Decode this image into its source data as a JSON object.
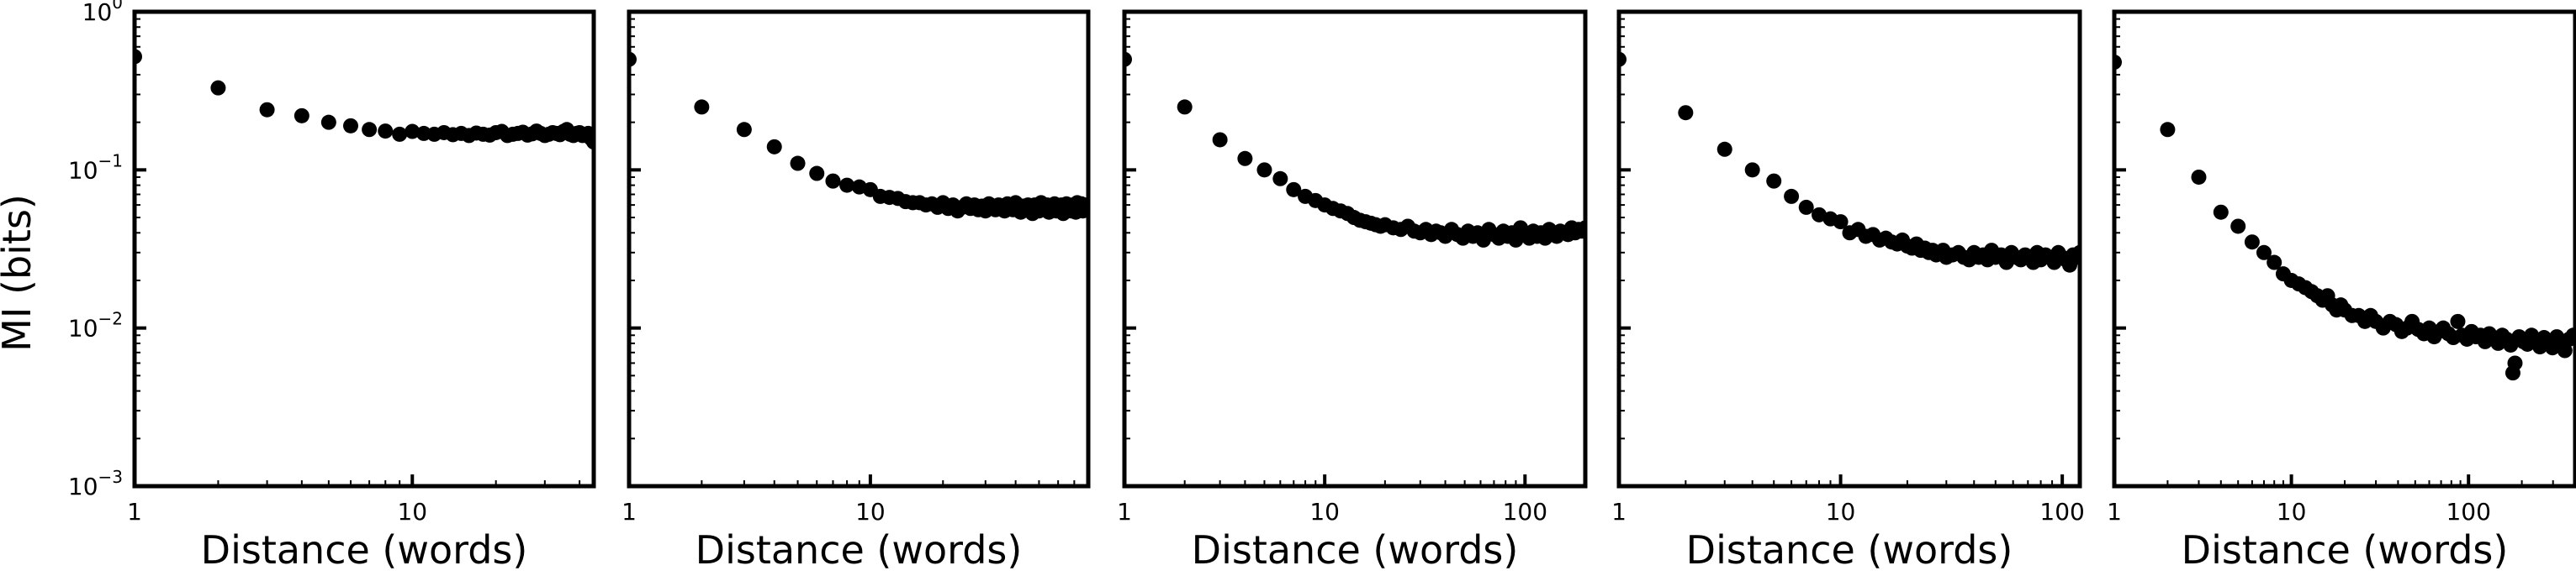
{
  "figure": {
    "ylabel": "MI (bits)",
    "y_ticks": [
      {
        "base": "10",
        "exp": "0",
        "value": 1
      },
      {
        "base": "10",
        "exp": "−1",
        "value": 0.1
      },
      {
        "base": "10",
        "exp": "−2",
        "value": 0.01
      },
      {
        "base": "10",
        "exp": "−3",
        "value": 0.001
      }
    ],
    "marker_color": "#000000"
  },
  "chart_data": [
    {
      "type": "scatter",
      "xscale": "log",
      "yscale": "log",
      "xlabel": "Distance (words)",
      "xlim": [
        1,
        45
      ],
      "ylim": [
        0.001,
        1
      ],
      "xticks": [
        {
          "label": "1",
          "value": 1
        },
        {
          "label": "10",
          "value": 10
        }
      ],
      "x": [
        1,
        2,
        3,
        4,
        5,
        6,
        7,
        8,
        9,
        10,
        11,
        12,
        13,
        14,
        15,
        16,
        17,
        18,
        19,
        20,
        21,
        22,
        23,
        24,
        25,
        26,
        27,
        28,
        29,
        30,
        31,
        32,
        33,
        34,
        35,
        36,
        37,
        38,
        39,
        40,
        41,
        42,
        43,
        44,
        45
      ],
      "y": [
        0.52,
        0.33,
        0.24,
        0.22,
        0.2,
        0.19,
        0.18,
        0.176,
        0.168,
        0.175,
        0.17,
        0.168,
        0.172,
        0.167,
        0.17,
        0.165,
        0.171,
        0.168,
        0.166,
        0.172,
        0.175,
        0.165,
        0.168,
        0.17,
        0.173,
        0.166,
        0.169,
        0.176,
        0.17,
        0.165,
        0.168,
        0.172,
        0.17,
        0.167,
        0.175,
        0.18,
        0.168,
        0.165,
        0.17,
        0.172,
        0.165,
        0.168,
        0.17,
        0.158,
        0.15
      ]
    },
    {
      "type": "scatter",
      "xscale": "log",
      "yscale": "log",
      "xlabel": "Distance (words)",
      "xlim": [
        1,
        80
      ],
      "ylim": [
        0.001,
        1
      ],
      "xticks": [
        {
          "label": "1",
          "value": 1
        },
        {
          "label": "10",
          "value": 10
        }
      ],
      "x": [
        1,
        2,
        3,
        4,
        5,
        6,
        7,
        8,
        9,
        10,
        11,
        12,
        13,
        14,
        15,
        16,
        17,
        18,
        19,
        20,
        21,
        22,
        23,
        24,
        25,
        26,
        27,
        28,
        29,
        30,
        31,
        32,
        33,
        34,
        35,
        36,
        37,
        38,
        39,
        40,
        41,
        42,
        43,
        44,
        45,
        46,
        47,
        48,
        49,
        50,
        51,
        52,
        53,
        54,
        55,
        56,
        57,
        58,
        59,
        60,
        61,
        62,
        63,
        64,
        65,
        66,
        67,
        68,
        69,
        70,
        71,
        72,
        73,
        74,
        75,
        76,
        77,
        78,
        79,
        80
      ],
      "y": [
        0.5,
        0.25,
        0.18,
        0.14,
        0.11,
        0.095,
        0.085,
        0.08,
        0.078,
        0.075,
        0.068,
        0.067,
        0.066,
        0.063,
        0.062,
        0.062,
        0.06,
        0.061,
        0.058,
        0.062,
        0.057,
        0.06,
        0.055,
        0.058,
        0.061,
        0.057,
        0.06,
        0.056,
        0.059,
        0.055,
        0.061,
        0.058,
        0.056,
        0.06,
        0.057,
        0.055,
        0.061,
        0.058,
        0.056,
        0.062,
        0.057,
        0.054,
        0.059,
        0.056,
        0.06,
        0.058,
        0.053,
        0.06,
        0.057,
        0.055,
        0.062,
        0.058,
        0.056,
        0.06,
        0.054,
        0.059,
        0.057,
        0.061,
        0.055,
        0.058,
        0.056,
        0.06,
        0.053,
        0.058,
        0.061,
        0.056,
        0.059,
        0.055,
        0.06,
        0.057,
        0.054,
        0.062,
        0.058,
        0.056,
        0.061,
        0.055,
        0.059,
        0.057,
        0.06,
        0.056
      ]
    },
    {
      "type": "scatter",
      "xscale": "log",
      "yscale": "log",
      "xlabel": "Distance (words)",
      "xlim": [
        1,
        200
      ],
      "ylim": [
        0.001,
        1
      ],
      "xticks": [
        {
          "label": "1",
          "value": 1
        },
        {
          "label": "10",
          "value": 10
        },
        {
          "label": "100",
          "value": 100
        }
      ],
      "x": [
        1,
        2,
        3,
        4,
        5,
        6,
        7,
        8,
        9,
        10,
        11,
        12,
        13,
        14,
        15,
        16,
        17,
        18,
        19,
        20,
        22,
        24,
        26,
        28,
        30,
        32,
        34,
        36,
        38,
        40,
        43,
        46,
        49,
        52,
        55,
        58,
        62,
        66,
        70,
        74,
        78,
        82,
        86,
        90,
        95,
        100,
        105,
        110,
        115,
        120,
        126,
        132,
        138,
        144,
        150,
        157,
        164,
        171,
        178,
        185,
        192,
        200
      ],
      "y": [
        0.5,
        0.25,
        0.155,
        0.118,
        0.1,
        0.088,
        0.075,
        0.068,
        0.064,
        0.06,
        0.057,
        0.055,
        0.053,
        0.05,
        0.048,
        0.047,
        0.046,
        0.045,
        0.044,
        0.045,
        0.043,
        0.042,
        0.044,
        0.041,
        0.04,
        0.042,
        0.039,
        0.041,
        0.04,
        0.038,
        0.042,
        0.039,
        0.037,
        0.041,
        0.038,
        0.04,
        0.036,
        0.042,
        0.039,
        0.037,
        0.041,
        0.038,
        0.04,
        0.036,
        0.043,
        0.039,
        0.037,
        0.041,
        0.038,
        0.04,
        0.037,
        0.042,
        0.039,
        0.038,
        0.041,
        0.04,
        0.039,
        0.043,
        0.04,
        0.042,
        0.041,
        0.043
      ]
    },
    {
      "type": "scatter",
      "xscale": "log",
      "yscale": "log",
      "xlabel": "Distance (words)",
      "xlim": [
        1,
        120
      ],
      "ylim": [
        0.001,
        1
      ],
      "xticks": [
        {
          "label": "1",
          "value": 1
        },
        {
          "label": "10",
          "value": 10
        },
        {
          "label": "100",
          "value": 100
        }
      ],
      "x": [
        1,
        2,
        3,
        4,
        5,
        6,
        7,
        8,
        9,
        10,
        11,
        12,
        13,
        14,
        15,
        16,
        17,
        18,
        19,
        20,
        21,
        22,
        23,
        24,
        25,
        26,
        27,
        28,
        29,
        30,
        32,
        34,
        36,
        38,
        40,
        42,
        44,
        46,
        48,
        50,
        53,
        56,
        59,
        62,
        65,
        68,
        71,
        74,
        77,
        80,
        84,
        88,
        92,
        96,
        100,
        104,
        108,
        112,
        116,
        120
      ],
      "y": [
        0.5,
        0.23,
        0.135,
        0.1,
        0.085,
        0.068,
        0.058,
        0.052,
        0.049,
        0.047,
        0.04,
        0.042,
        0.038,
        0.039,
        0.036,
        0.037,
        0.035,
        0.034,
        0.036,
        0.033,
        0.032,
        0.034,
        0.031,
        0.032,
        0.03,
        0.031,
        0.029,
        0.03,
        0.031,
        0.028,
        0.029,
        0.03,
        0.028,
        0.027,
        0.03,
        0.028,
        0.029,
        0.027,
        0.031,
        0.028,
        0.029,
        0.026,
        0.03,
        0.028,
        0.027,
        0.029,
        0.028,
        0.026,
        0.03,
        0.027,
        0.029,
        0.028,
        0.026,
        0.03,
        0.028,
        0.027,
        0.025,
        0.029,
        0.028,
        0.03
      ]
    },
    {
      "type": "scatter",
      "xscale": "log",
      "yscale": "log",
      "xlabel": "Distance (words)",
      "xlim": [
        1,
        400
      ],
      "ylim": [
        0.001,
        1
      ],
      "xticks": [
        {
          "label": "1",
          "value": 1
        },
        {
          "label": "10",
          "value": 10
        },
        {
          "label": "100",
          "value": 100
        }
      ],
      "x": [
        1,
        2,
        3,
        4,
        5,
        6,
        7,
        8,
        9,
        10,
        11,
        12,
        13,
        14,
        15,
        16,
        17,
        18,
        19,
        20,
        22,
        24,
        26,
        28,
        30,
        33,
        36,
        39,
        42,
        45,
        48,
        52,
        56,
        60,
        64,
        68,
        72,
        77,
        82,
        87,
        92,
        98,
        104,
        110,
        117,
        124,
        131,
        139,
        147,
        155,
        164,
        173,
        178,
        183,
        193,
        204,
        215,
        227,
        240,
        253,
        267,
        282,
        298,
        315,
        332,
        350,
        370,
        390
      ],
      "y": [
        0.48,
        0.18,
        0.09,
        0.054,
        0.044,
        0.035,
        0.03,
        0.026,
        0.022,
        0.02,
        0.019,
        0.018,
        0.017,
        0.016,
        0.015,
        0.016,
        0.014,
        0.013,
        0.014,
        0.013,
        0.012,
        0.012,
        0.011,
        0.012,
        0.011,
        0.01,
        0.011,
        0.0105,
        0.0095,
        0.01,
        0.011,
        0.0098,
        0.0092,
        0.01,
        0.0088,
        0.0095,
        0.01,
        0.0092,
        0.0087,
        0.011,
        0.009,
        0.0085,
        0.0095,
        0.0088,
        0.009,
        0.0082,
        0.0092,
        0.0086,
        0.008,
        0.009,
        0.0085,
        0.0078,
        0.0052,
        0.006,
        0.0088,
        0.0082,
        0.0079,
        0.009,
        0.0084,
        0.0076,
        0.0087,
        0.008,
        0.0075,
        0.0088,
        0.0081,
        0.0072,
        0.0085,
        0.009
      ]
    }
  ]
}
